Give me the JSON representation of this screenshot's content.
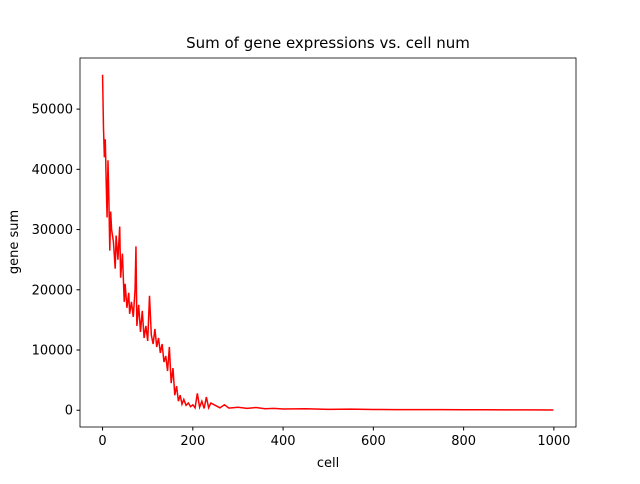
{
  "chart_data": {
    "type": "line",
    "title": "Sum of gene expressions vs. cell num",
    "x_label": "cell",
    "y_label": "gene sum",
    "series": [
      {
        "color": "#ff0000",
        "x": [
          0,
          2,
          4,
          6,
          8,
          10,
          12,
          14,
          16,
          18,
          20,
          24,
          28,
          30,
          34,
          38,
          40,
          44,
          48,
          50,
          54,
          58,
          60,
          64,
          68,
          72,
          74,
          76,
          80,
          84,
          88,
          92,
          96,
          100,
          104,
          108,
          112,
          116,
          120,
          124,
          128,
          132,
          136,
          140,
          144,
          148,
          152,
          156,
          160,
          164,
          168,
          172,
          176,
          180,
          185,
          190,
          195,
          200,
          205,
          210,
          215,
          220,
          225,
          230,
          235,
          240,
          250,
          260,
          270,
          280,
          300,
          320,
          340,
          360,
          380,
          400,
          450,
          500,
          550,
          600,
          650,
          700,
          750,
          800,
          850,
          900,
          950,
          999
        ],
        "values": [
          55700,
          47000,
          42000,
          45000,
          38000,
          32000,
          41500,
          35000,
          26500,
          33000,
          30000,
          28000,
          23500,
          29000,
          25000,
          30500,
          22000,
          26000,
          18000,
          21000,
          17000,
          19500,
          16000,
          18000,
          15500,
          20000,
          27200,
          14000,
          17500,
          13000,
          16500,
          12000,
          14000,
          11500,
          19000,
          12500,
          11000,
          13500,
          10500,
          12000,
          9500,
          11000,
          8000,
          9000,
          6500,
          10500,
          4500,
          7000,
          2500,
          4000,
          1500,
          2500,
          1000,
          1800,
          800,
          1200,
          600,
          900,
          400,
          2800,
          500,
          1500,
          300,
          2200,
          400,
          1200,
          800,
          400,
          900,
          350,
          500,
          300,
          450,
          250,
          300,
          200,
          250,
          150,
          180,
          120,
          100,
          90,
          110,
          80,
          70,
          60,
          50,
          40
        ]
      }
    ],
    "xlim": [
      -50,
      1049
    ],
    "ylim": [
      -2785,
      58485
    ],
    "xticks": [
      0,
      200,
      400,
      600,
      800,
      1000
    ],
    "yticks": [
      0,
      10000,
      20000,
      30000,
      40000,
      50000
    ]
  }
}
